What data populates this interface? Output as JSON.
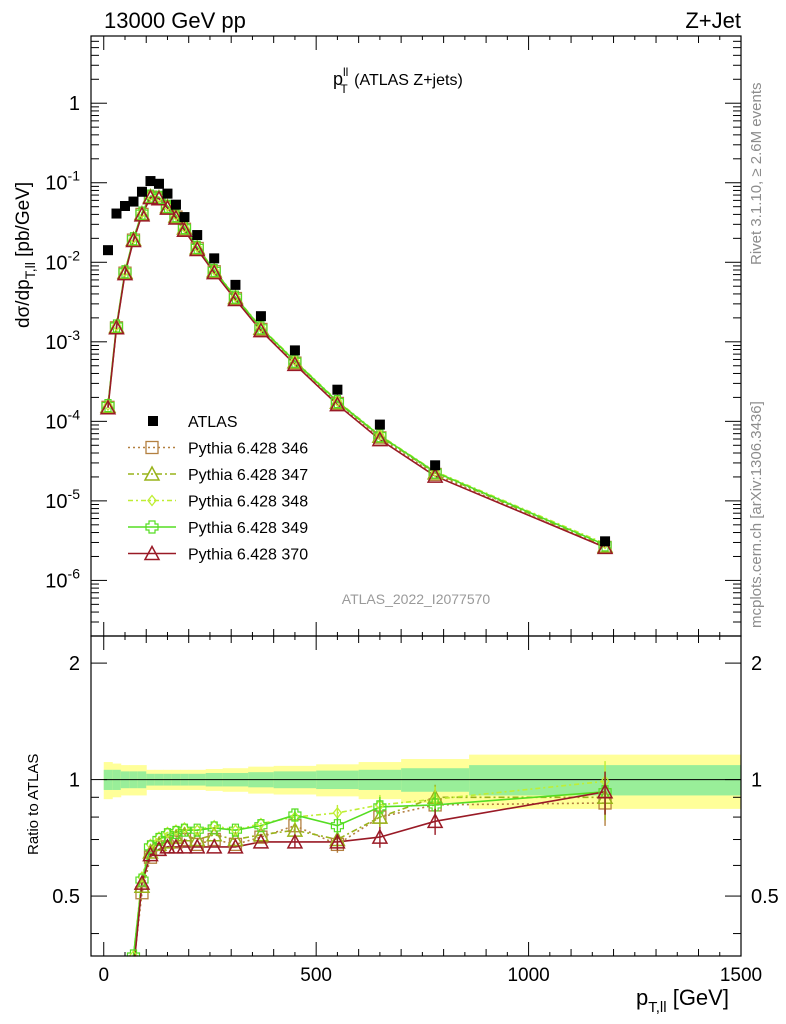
{
  "header": {
    "left": "13000 GeV pp",
    "right": "Z+Jet"
  },
  "plot_title": {
    "main": "p",
    "sup": "ll",
    "sub": "T",
    "rest": " (ATLAS Z+jets)"
  },
  "y_axis_label": {
    "main": "dσ/dp",
    "sub": "T,ll",
    "rest": " [pb/GeV]"
  },
  "x_axis_label": {
    "main": "p",
    "sub": "T,ll",
    "rest": " [GeV]"
  },
  "ratio_ylabel": "Ratio to ATLAS",
  "analysis_id": "ATLAS_2022_I2077570",
  "side_text_top": "Rivet 3.1.10, ≥ 2.6M events",
  "side_text_bottom": "mcplots.cern.ch [arXiv:1306.3436]",
  "colors": {
    "data": "#000000",
    "p346": "#b38040",
    "p347": "#99b31a",
    "p348": "#bfee33",
    "p349": "#55dd22",
    "p370": "#991a26",
    "band_inner": "#99ee99",
    "band_outer": "#ffff99"
  },
  "chart_data": [
    {
      "type": "scatter",
      "xscale": "linear",
      "yscale": "log",
      "xlim": [
        -30,
        1500
      ],
      "ylim": [
        2e-07,
        7
      ],
      "x_tick_labels": [
        "0",
        "500",
        "1000",
        "1500"
      ],
      "y_tick_labels": [
        "10^-6",
        "10^-5",
        "10^-4",
        "10^-3",
        "10^-2",
        "10^-1",
        "1"
      ],
      "legend_position": "bottom-left",
      "series": [
        {
          "name": "ATLAS",
          "key": "data",
          "marker": "square",
          "x": [
            10,
            30,
            50,
            70,
            90,
            110,
            130,
            150,
            170,
            190,
            220,
            260,
            310,
            370,
            450,
            550,
            650,
            780,
            1180
          ],
          "y": [
            0.0142,
            0.041,
            0.051,
            0.058,
            0.077,
            0.105,
            0.097,
            0.073,
            0.053,
            0.037,
            0.022,
            0.0112,
            0.0052,
            0.0021,
            0.00078,
            0.00025,
            9.1e-05,
            2.8e-05,
            3.1e-06
          ]
        },
        {
          "name": "Pythia 6.428 346",
          "key": "p346",
          "marker": "open-square",
          "x": [
            10,
            30,
            50,
            70,
            90,
            110,
            130,
            150,
            170,
            190,
            220,
            260,
            310,
            370,
            450,
            550,
            650,
            780,
            1180
          ],
          "y": [
            0.00015,
            0.0015,
            0.0073,
            0.019,
            0.04,
            0.066,
            0.064,
            0.049,
            0.037,
            0.026,
            0.0149,
            0.0076,
            0.0035,
            0.00143,
            0.00054,
            0.000168,
            6.2e-05,
            2.15e-05,
            2.6e-06
          ]
        },
        {
          "name": "Pythia 6.428 347",
          "key": "p347",
          "marker": "open-triangle",
          "x": [
            10,
            30,
            50,
            70,
            90,
            110,
            130,
            150,
            170,
            190,
            220,
            260,
            310,
            370,
            450,
            550,
            650,
            780,
            1180
          ],
          "y": [
            0.000155,
            0.00155,
            0.0075,
            0.0195,
            0.041,
            0.067,
            0.065,
            0.05,
            0.038,
            0.027,
            0.0152,
            0.0078,
            0.0036,
            0.00148,
            0.00056,
            0.000174,
            6.5e-05,
            2.25e-05,
            2.7e-06
          ]
        },
        {
          "name": "Pythia 6.428 348",
          "key": "p348",
          "marker": "open-diamond",
          "x": [
            10,
            30,
            50,
            70,
            90,
            110,
            130,
            150,
            170,
            190,
            220,
            260,
            310,
            370,
            450,
            550,
            650,
            780,
            1180
          ],
          "y": [
            0.00016,
            0.0016,
            0.0077,
            0.02,
            0.042,
            0.069,
            0.066,
            0.051,
            0.039,
            0.0275,
            0.0156,
            0.008,
            0.0037,
            0.00152,
            0.00058,
            0.00018,
            6.7e-05,
            2.35e-05,
            2.9e-06
          ]
        },
        {
          "name": "Pythia 6.428 349",
          "key": "p349",
          "marker": "open-cross",
          "x": [
            10,
            30,
            50,
            70,
            90,
            110,
            130,
            150,
            170,
            190,
            220,
            260,
            310,
            370,
            450,
            550,
            650,
            780,
            1180
          ],
          "y": [
            0.000158,
            0.00158,
            0.0076,
            0.0198,
            0.0415,
            0.068,
            0.0655,
            0.0505,
            0.0385,
            0.0272,
            0.0154,
            0.0079,
            0.00365,
            0.0015,
            0.00057,
            0.000177,
            6.6e-05,
            2.3e-05,
            2.8e-06
          ]
        },
        {
          "name": "Pythia 6.428 370",
          "key": "p370",
          "marker": "open-triangle",
          "x": [
            10,
            30,
            50,
            70,
            90,
            110,
            130,
            150,
            170,
            190,
            220,
            260,
            310,
            370,
            450,
            550,
            650,
            780,
            1180
          ],
          "y": [
            0.000148,
            0.0015,
            0.0072,
            0.0188,
            0.0395,
            0.065,
            0.063,
            0.048,
            0.036,
            0.0253,
            0.0145,
            0.0074,
            0.0034,
            0.00138,
            0.00052,
            0.000162,
            5.9e-05,
            2.05e-05,
            2.6e-06
          ]
        }
      ]
    },
    {
      "type": "line",
      "xscale": "linear",
      "yscale": "log",
      "xlim": [
        -30,
        1500
      ],
      "ylim": [
        0.35,
        2.35
      ],
      "ylabel": "Ratio to ATLAS",
      "y_tick_labels": [
        "0.5",
        "1",
        "2"
      ],
      "band": {
        "edges": [
          0,
          20,
          40,
          60,
          80,
          100,
          120,
          140,
          160,
          180,
          200,
          240,
          280,
          340,
          400,
          500,
          600,
          700,
          860,
          1500
        ],
        "inner": [
          0.06,
          0.06,
          0.05,
          0.05,
          0.05,
          0.035,
          0.035,
          0.035,
          0.035,
          0.035,
          0.035,
          0.04,
          0.04,
          0.045,
          0.05,
          0.055,
          0.06,
          0.07,
          0.09
        ],
        "outer": [
          0.11,
          0.1,
          0.09,
          0.09,
          0.09,
          0.06,
          0.06,
          0.06,
          0.06,
          0.06,
          0.06,
          0.065,
          0.07,
          0.08,
          0.085,
          0.095,
          0.11,
          0.13,
          0.16
        ]
      },
      "series": [
        {
          "name": "Pythia 6.428 346",
          "key": "p346",
          "x": [
            70,
            90,
            110,
            130,
            150,
            170,
            190,
            220,
            260,
            310,
            370,
            450,
            550,
            650,
            780,
            1180
          ],
          "y": [
            0.33,
            0.51,
            0.63,
            0.66,
            0.67,
            0.69,
            0.7,
            0.68,
            0.7,
            0.68,
            0.71,
            0.76,
            0.68,
            0.8,
            0.86,
            0.87
          ]
        },
        {
          "name": "Pythia 6.428 347",
          "key": "p347",
          "x": [
            70,
            90,
            110,
            130,
            150,
            170,
            190,
            220,
            260,
            310,
            370,
            450,
            550,
            650,
            780,
            1180
          ],
          "y": [
            0.34,
            0.53,
            0.65,
            0.68,
            0.69,
            0.71,
            0.72,
            0.7,
            0.72,
            0.7,
            0.72,
            0.74,
            0.7,
            0.8,
            0.9,
            0.9
          ]
        },
        {
          "name": "Pythia 6.428 348",
          "key": "p348",
          "x": [
            70,
            90,
            110,
            130,
            150,
            170,
            190,
            220,
            260,
            310,
            370,
            450,
            550,
            650,
            780,
            1180
          ],
          "y": [
            0.35,
            0.56,
            0.68,
            0.71,
            0.73,
            0.74,
            0.75,
            0.74,
            0.76,
            0.74,
            0.77,
            0.8,
            0.82,
            0.86,
            0.89,
            0.99
          ]
        },
        {
          "name": "Pythia 6.428 349",
          "key": "p349",
          "x": [
            70,
            90,
            110,
            130,
            150,
            170,
            190,
            220,
            260,
            310,
            370,
            450,
            550,
            650,
            780,
            1180
          ],
          "y": [
            0.35,
            0.55,
            0.67,
            0.7,
            0.72,
            0.73,
            0.74,
            0.74,
            0.75,
            0.74,
            0.76,
            0.81,
            0.76,
            0.85,
            0.86,
            0.93
          ]
        },
        {
          "name": "Pythia 6.428 370",
          "key": "p370",
          "x": [
            70,
            90,
            110,
            130,
            150,
            170,
            190,
            220,
            260,
            310,
            370,
            450,
            550,
            650,
            780,
            1180
          ],
          "y": [
            0.32,
            0.54,
            0.64,
            0.66,
            0.67,
            0.67,
            0.67,
            0.67,
            0.67,
            0.67,
            0.69,
            0.69,
            0.69,
            0.71,
            0.78,
            0.93
          ]
        }
      ]
    }
  ]
}
